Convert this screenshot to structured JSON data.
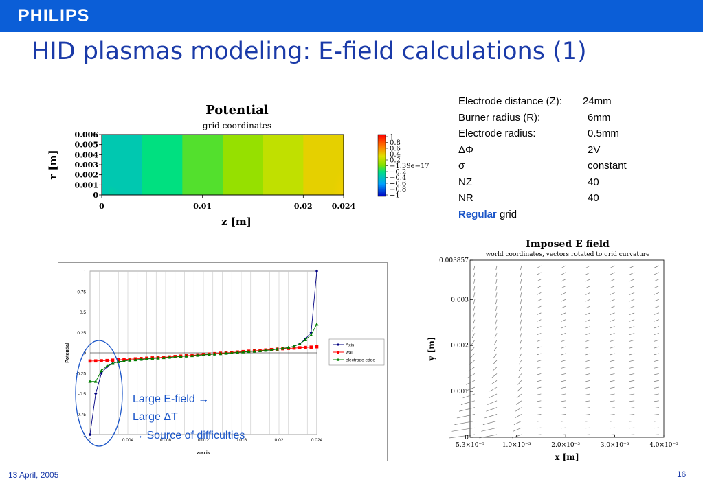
{
  "header": {
    "logo": "PHILIPS",
    "title": "HID plasmas modeling: E-field calculations (1)"
  },
  "params": {
    "rows": [
      {
        "label": "Electrode distance (Z):",
        "value": "24mm"
      },
      {
        "label": "Burner radius (R):",
        "value": "6mm"
      },
      {
        "label": "Electrode radius:",
        "value": "0.5mm"
      },
      {
        "label": "ΔΦ",
        "value": "2V"
      },
      {
        "label": "σ",
        "value": "constant"
      },
      {
        "label": "NZ",
        "value": "40"
      },
      {
        "label": "NR",
        "value": "40"
      }
    ],
    "grid_bold": "Regular",
    "grid_rest": " grid"
  },
  "footer": {
    "date": "13 April, 2005",
    "page": "16"
  },
  "colors": {
    "header_blue": "#0b5ed7",
    "title_blue": "#1a3aa8",
    "axis_series": "#000080",
    "wall_series": "#ff0000",
    "edge_series": "#008000",
    "annotation_blue": "#1a55c8"
  },
  "annotation": {
    "line1": "Large E-field →",
    "line2": "Large ΔT",
    "line3": "→ Source of difficulties"
  },
  "chart_data": [
    {
      "type": "heatmap",
      "title": "Potential",
      "subtitle": "grid coordinates",
      "xlabel": "z [m]",
      "ylabel": "r [m]",
      "x_ticks": [
        "0",
        "0.01",
        "0.02",
        "0.024"
      ],
      "y_ticks": [
        "0",
        "0.001",
        "0.002",
        "0.003",
        "0.004",
        "0.005",
        "0.006"
      ],
      "xlim": [
        0,
        0.024
      ],
      "ylim": [
        0,
        0.006
      ],
      "colorbar_ticks": [
        "1",
        "0.8",
        "0.6",
        "0.4",
        "0.2",
        "−1.39e−17",
        "−0.2",
        "−0.4",
        "−0.6",
        "−0.8",
        "−1"
      ],
      "band_values": [
        -0.35,
        -0.2,
        -0.07,
        0.07,
        0.2,
        0.35
      ]
    },
    {
      "type": "line",
      "xlabel": "z-axis",
      "ylabel": "Potential",
      "xlim": [
        0,
        0.024
      ],
      "ylim": [
        -1,
        1
      ],
      "x_ticks": [
        "0",
        "0.004",
        "0.008",
        "0.012",
        "0.016",
        "0.02",
        "0.024"
      ],
      "y_ticks": [
        "1",
        "0.75",
        "0.5",
        "0.25",
        "0",
        "-0.25",
        "-0.5",
        "-0.75",
        "-1"
      ],
      "legend_position": "right",
      "x": [
        0,
        0.0006,
        0.0012,
        0.0018,
        0.0024,
        0.003,
        0.0036,
        0.0042,
        0.0048,
        0.0054,
        0.006,
        0.0066,
        0.0072,
        0.0078,
        0.0084,
        0.009,
        0.0096,
        0.0102,
        0.0108,
        0.0114,
        0.012,
        0.0126,
        0.0132,
        0.0138,
        0.0144,
        0.015,
        0.0156,
        0.0162,
        0.0168,
        0.0174,
        0.018,
        0.0186,
        0.0192,
        0.0198,
        0.0204,
        0.021,
        0.0216,
        0.0222,
        0.0228,
        0.0234,
        0.024
      ],
      "series": [
        {
          "name": "Axis",
          "color": "#000080",
          "marker": "diamond",
          "values": [
            -1,
            -0.5,
            -0.25,
            -0.17,
            -0.13,
            -0.11,
            -0.1,
            -0.09,
            -0.085,
            -0.08,
            -0.075,
            -0.07,
            -0.065,
            -0.06,
            -0.055,
            -0.05,
            -0.045,
            -0.04,
            -0.035,
            -0.03,
            -0.025,
            -0.02,
            -0.015,
            -0.01,
            -0.005,
            0,
            0.005,
            0.01,
            0.015,
            0.02,
            0.025,
            0.03,
            0.035,
            0.045,
            0.055,
            0.065,
            0.08,
            0.11,
            0.17,
            0.25,
            1
          ]
        },
        {
          "name": "wall",
          "color": "#ff0000",
          "marker": "square",
          "values": [
            -0.1,
            -0.099,
            -0.097,
            -0.094,
            -0.09,
            -0.086,
            -0.082,
            -0.078,
            -0.074,
            -0.07,
            -0.066,
            -0.062,
            -0.058,
            -0.054,
            -0.05,
            -0.045,
            -0.04,
            -0.035,
            -0.03,
            -0.025,
            -0.02,
            -0.015,
            -0.01,
            -0.005,
            0,
            0.005,
            0.01,
            0.015,
            0.02,
            0.025,
            0.03,
            0.035,
            0.04,
            0.045,
            0.05,
            0.054,
            0.058,
            0.062,
            0.066,
            0.07,
            0.074
          ]
        },
        {
          "name": "electrode edge",
          "color": "#008000",
          "marker": "triangle",
          "values": [
            -0.35,
            -0.35,
            -0.22,
            -0.16,
            -0.13,
            -0.11,
            -0.1,
            -0.09,
            -0.085,
            -0.08,
            -0.075,
            -0.07,
            -0.065,
            -0.06,
            -0.055,
            -0.05,
            -0.045,
            -0.04,
            -0.035,
            -0.03,
            -0.025,
            -0.02,
            -0.015,
            -0.01,
            -0.005,
            0,
            0.005,
            0.01,
            0.015,
            0.02,
            0.025,
            0.03,
            0.035,
            0.045,
            0.055,
            0.065,
            0.08,
            0.11,
            0.16,
            0.22,
            0.35
          ]
        }
      ]
    },
    {
      "type": "scatter",
      "title": "Imposed E field",
      "subtitle": "world coordinates, vectors rotated to grid curvature",
      "xlabel": "x [m]",
      "ylabel": "y [m]",
      "x_ticks": [
        "5.3×10⁻⁵",
        "1.0×10⁻³",
        "2.0×10⁻³",
        "3.0×10⁻³",
        "4.0×10⁻³"
      ],
      "y_ticks": [
        "0",
        "0.001",
        "0.002",
        "0.003",
        "0.003857"
      ],
      "xlim": [
        5.3e-05,
        0.004
      ],
      "ylim": [
        0,
        0.003857
      ],
      "columns_x": [
        0.00015,
        0.0006,
        0.0011,
        0.0015,
        0.002,
        0.0025,
        0.003,
        0.0034,
        0.0039
      ]
    }
  ]
}
